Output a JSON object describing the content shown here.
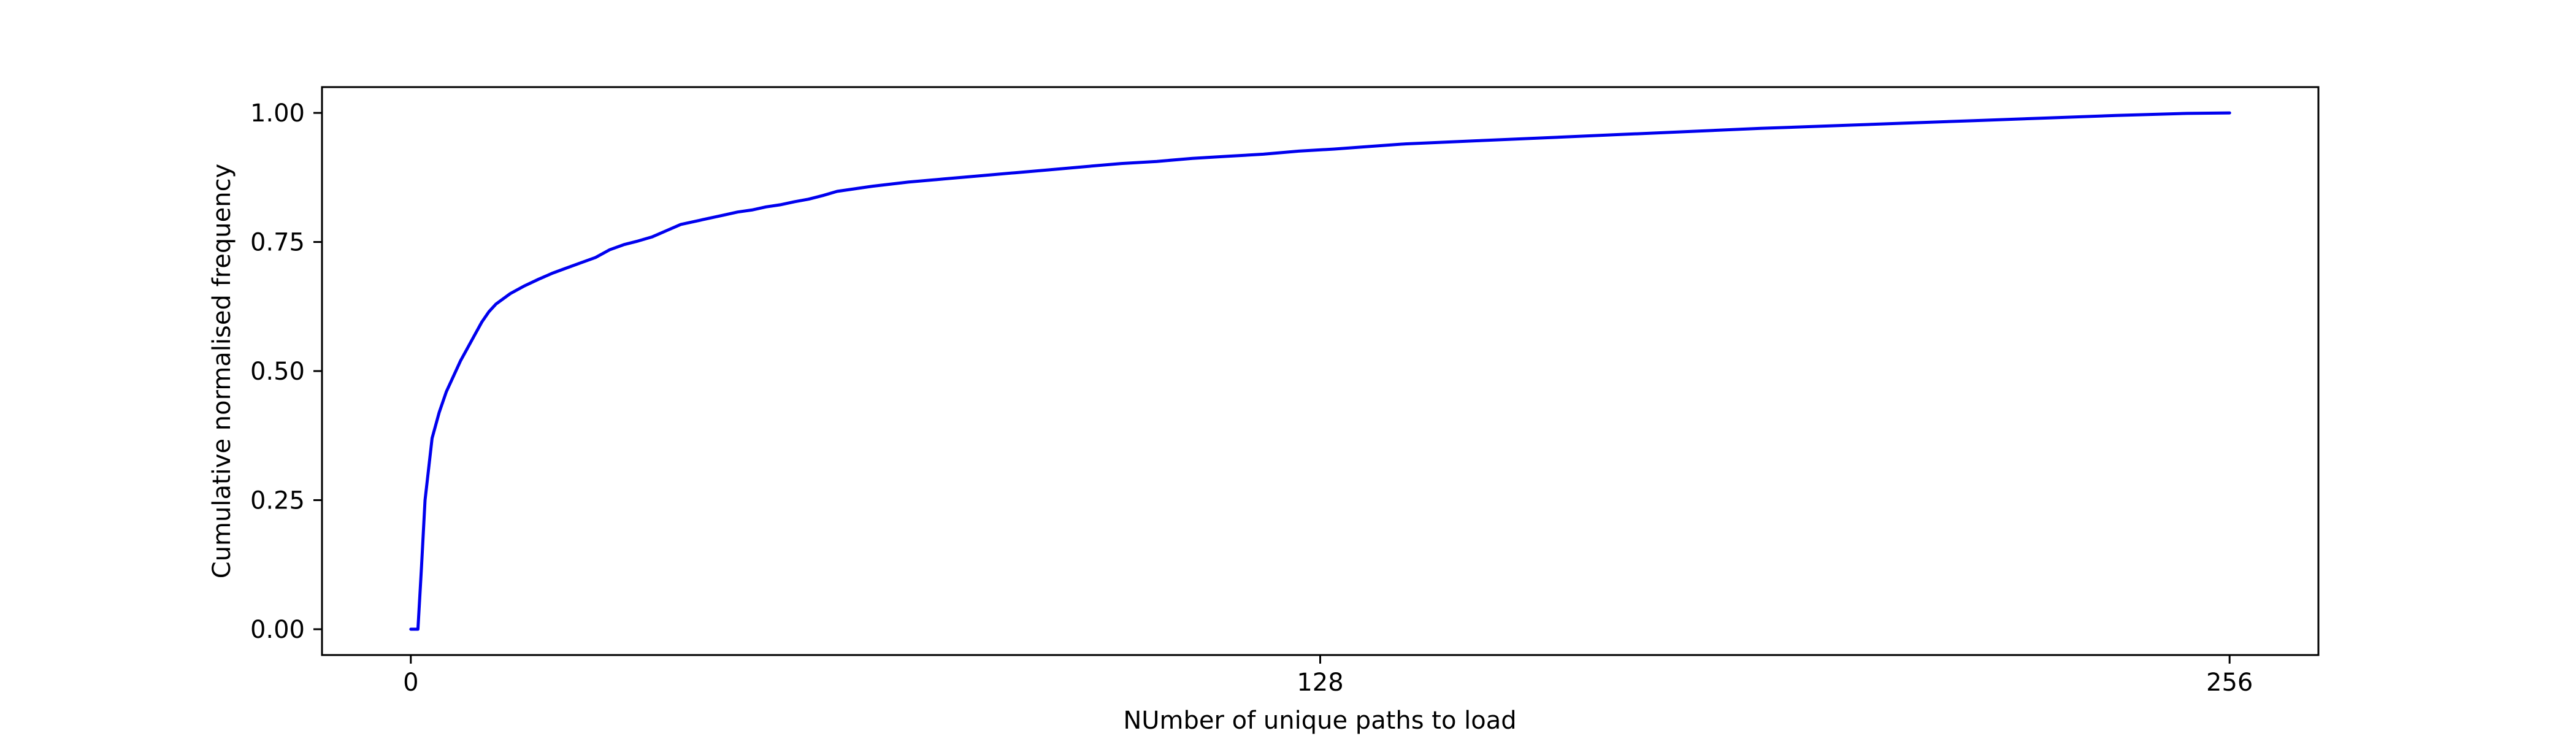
{
  "chart_data": {
    "type": "line",
    "title": "",
    "xlabel": "NUmber of unique paths to load",
    "ylabel": "Cumulative normalised frequency",
    "xlim": [
      -12.5,
      268.5
    ],
    "ylim": [
      -0.05,
      1.05
    ],
    "xticks": [
      0,
      128,
      256
    ],
    "yticks": [
      0.0,
      0.25,
      0.5,
      0.75,
      1.0
    ],
    "xtick_labels": [
      "0",
      "128",
      "256"
    ],
    "ytick_labels": [
      "0.00",
      "0.25",
      "0.50",
      "0.75",
      "1.00"
    ],
    "grid": false,
    "legend": false,
    "line_color": "#0000ee",
    "series": [
      {
        "x": [
          0,
          1,
          1.5,
          2,
          3,
          4,
          5,
          6,
          7,
          8,
          9,
          10,
          11,
          12,
          14,
          16,
          18,
          20,
          22,
          24,
          26,
          28,
          30,
          32,
          34,
          36,
          38,
          40,
          42,
          44,
          46,
          48,
          50,
          52,
          54,
          56,
          58,
          60,
          65,
          70,
          75,
          80,
          85,
          90,
          95,
          100,
          105,
          110,
          115,
          120,
          125,
          130,
          135,
          140,
          150,
          160,
          170,
          180,
          190,
          200,
          210,
          220,
          230,
          240,
          250,
          256
        ],
        "y": [
          0.0,
          0.0,
          0.12,
          0.25,
          0.37,
          0.42,
          0.46,
          0.49,
          0.52,
          0.545,
          0.57,
          0.595,
          0.615,
          0.63,
          0.65,
          0.665,
          0.678,
          0.69,
          0.7,
          0.71,
          0.72,
          0.735,
          0.745,
          0.752,
          0.76,
          0.772,
          0.784,
          0.79,
          0.796,
          0.802,
          0.808,
          0.812,
          0.818,
          0.822,
          0.828,
          0.833,
          0.84,
          0.848,
          0.858,
          0.866,
          0.872,
          0.878,
          0.884,
          0.89,
          0.896,
          0.902,
          0.906,
          0.912,
          0.916,
          0.92,
          0.926,
          0.93,
          0.935,
          0.94,
          0.946,
          0.952,
          0.958,
          0.964,
          0.97,
          0.975,
          0.98,
          0.985,
          0.99,
          0.995,
          0.999,
          1.0
        ]
      }
    ]
  }
}
